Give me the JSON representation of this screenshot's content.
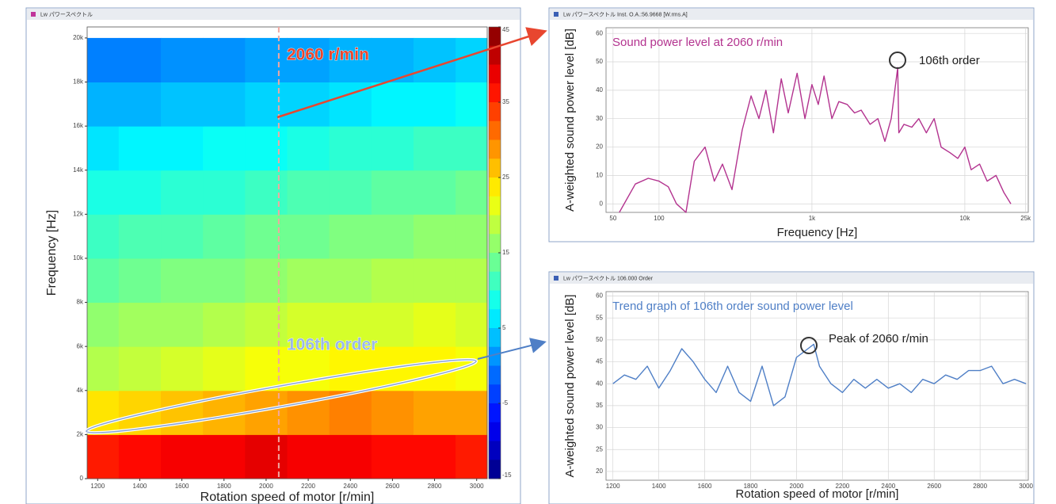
{
  "chart_data": [
    {
      "type": "heatmap",
      "window_title": "Lw パワースペクトル",
      "xlabel": "Rotation speed of motor [r/min]",
      "ylabel": "Frequency [Hz]",
      "x": [
        1200,
        1400,
        1600,
        1800,
        2000,
        2200,
        2400,
        2600,
        2800,
        3000
      ],
      "y": [
        1000,
        3000,
        5000,
        7000,
        9000,
        11000,
        13000,
        15000,
        17000,
        19000
      ],
      "z": [
        [
          36,
          37,
          38,
          38,
          39,
          38,
          38,
          37,
          37,
          36
        ],
        [
          24,
          25,
          26,
          27,
          28,
          29,
          30,
          29,
          28,
          28
        ],
        [
          18,
          19,
          20,
          21,
          22,
          22,
          23,
          23,
          23,
          22
        ],
        [
          16,
          17,
          17,
          18,
          19,
          20,
          20,
          20,
          21,
          20
        ],
        [
          13,
          14,
          15,
          15,
          16,
          17,
          17,
          18,
          18,
          18
        ],
        [
          11,
          12,
          12,
          13,
          14,
          14,
          15,
          15,
          16,
          16
        ],
        [
          9,
          9,
          10,
          10,
          11,
          12,
          12,
          13,
          13,
          14
        ],
        [
          6,
          7,
          7,
          8,
          8,
          9,
          10,
          10,
          11,
          11
        ],
        [
          3,
          3,
          4,
          4,
          5,
          5,
          6,
          7,
          7,
          8
        ],
        [
          0,
          0,
          1,
          1,
          2,
          2,
          3,
          3,
          4,
          5
        ]
      ],
      "xlim": [
        1150,
        3050
      ],
      "ylim": [
        0,
        20500
      ],
      "xticks": [
        1200,
        1400,
        1600,
        1800,
        2000,
        2200,
        2400,
        2600,
        2800,
        3000
      ],
      "yticks": [
        0,
        {
          "value": 2000,
          "label": "2k"
        },
        {
          "value": 4000,
          "label": "4k"
        },
        {
          "value": 6000,
          "label": "6k"
        },
        {
          "value": 8000,
          "label": "8k"
        },
        {
          "value": 10000,
          "label": "10k"
        },
        {
          "value": 12000,
          "label": "12k"
        },
        {
          "value": 14000,
          "label": "14k"
        },
        {
          "value": 16000,
          "label": "16k"
        },
        {
          "value": 18000,
          "label": "18k"
        },
        {
          "value": 20000,
          "label": "20k"
        }
      ],
      "zlim": [
        -15,
        45
      ],
      "zticks": [
        45,
        35,
        25,
        15,
        5,
        -5,
        -15
      ],
      "colormap": "jet",
      "vline": 2060,
      "annotations": [
        "2060 r/min",
        "106th order"
      ]
    },
    {
      "type": "line",
      "window_title": "Lw パワースペクトル Inst. O.A.:56.9668 [W.rms.A]",
      "title": "Sound power level at 2060 r/min",
      "xlabel": "Frequency [Hz]",
      "ylabel": "A-weighted sound power level [dB]",
      "xscale": "log",
      "x": [
        55,
        70,
        85,
        100,
        115,
        130,
        150,
        170,
        200,
        230,
        260,
        300,
        350,
        400,
        450,
        500,
        560,
        630,
        700,
        800,
        900,
        1000,
        1100,
        1200,
        1350,
        1500,
        1700,
        1900,
        2100,
        2400,
        2700,
        3000,
        3300,
        3640,
        3700,
        4000,
        4500,
        5000,
        5600,
        6300,
        7000,
        8000,
        9000,
        10000,
        11000,
        12500,
        14000,
        16000,
        18000,
        20000
      ],
      "series": [
        {
          "name": "Lw",
          "color": "#b3338f",
          "values": [
            -3,
            7,
            9,
            8,
            6,
            0,
            -3,
            15,
            20,
            8,
            14,
            5,
            26,
            38,
            30,
            40,
            25,
            44,
            32,
            46,
            30,
            42,
            35,
            45,
            30,
            36,
            35,
            32,
            33,
            28,
            30,
            22,
            30,
            48,
            25,
            28,
            27,
            30,
            25,
            30,
            20,
            18,
            16,
            20,
            12,
            14,
            8,
            10,
            4,
            0
          ]
        }
      ],
      "xlim": [
        45,
        26000
      ],
      "ylim": [
        -3,
        62
      ],
      "xticks": [
        50,
        100,
        {
          "value": 1000,
          "label": "1k"
        },
        {
          "value": 10000,
          "label": "10k"
        },
        {
          "value": 25000,
          "label": "25k"
        }
      ],
      "yticks": [
        0,
        10,
        20,
        30,
        40,
        50,
        60
      ],
      "grid": true,
      "annotations": [
        "106th order"
      ]
    },
    {
      "type": "line",
      "window_title": "Lw パワースペクトル 106.000 Order",
      "title": "Trend graph of 106th order sound power level",
      "xlabel": "Rotation speed of motor [r/min]",
      "ylabel": "A-weighted sound power level [dB]",
      "xscale": "linear",
      "x": [
        1200,
        1250,
        1300,
        1350,
        1400,
        1450,
        1500,
        1550,
        1600,
        1650,
        1700,
        1750,
        1800,
        1850,
        1900,
        1950,
        2000,
        2050,
        2075,
        2100,
        2150,
        2200,
        2250,
        2300,
        2350,
        2400,
        2450,
        2500,
        2550,
        2600,
        2650,
        2700,
        2750,
        2800,
        2850,
        2900,
        2950,
        3000
      ],
      "series": [
        {
          "name": "106th order",
          "color": "#4f7fc6",
          "values": [
            40,
            42,
            41,
            44,
            39,
            43,
            48,
            45,
            41,
            38,
            44,
            38,
            36,
            44,
            35,
            37,
            46,
            48,
            49,
            44,
            40,
            38,
            41,
            39,
            41,
            39,
            40,
            38,
            41,
            40,
            42,
            41,
            43,
            43,
            44,
            40,
            41,
            40
          ]
        }
      ],
      "xlim": [
        1170,
        3010
      ],
      "ylim": [
        18,
        61
      ],
      "xticks": [
        1200,
        1400,
        1600,
        1800,
        2000,
        2200,
        2400,
        2600,
        2800,
        3000
      ],
      "yticks": [
        20,
        25,
        30,
        35,
        40,
        45,
        50,
        55,
        60
      ],
      "grid": true,
      "annotations": [
        "Peak of 2060 r/min"
      ]
    }
  ]
}
